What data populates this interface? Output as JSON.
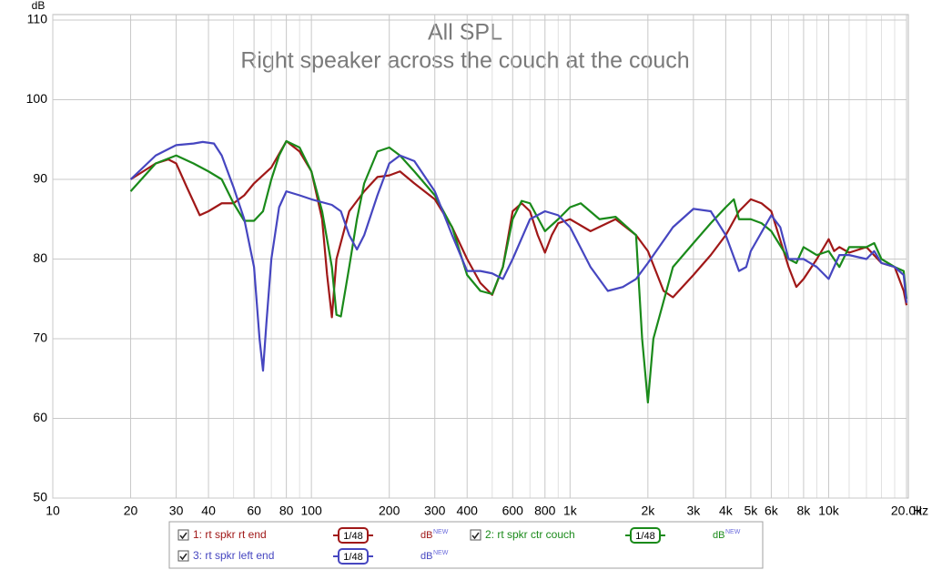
{
  "chart_data": {
    "type": "line",
    "title": "All SPL",
    "subtitle": "Right speaker across the couch at the couch",
    "x_label": "Hz",
    "y_label": "dB",
    "xscale": "log",
    "grid": true,
    "xlim": [
      10,
      20000
    ],
    "ylim": [
      50,
      110
    ],
    "yticks": [
      50,
      60,
      70,
      80,
      90,
      100,
      110
    ],
    "xticks": [
      10,
      20,
      30,
      40,
      60,
      80,
      100,
      200,
      300,
      400,
      600,
      800,
      {
        "value": 1000,
        "label": "1k"
      },
      {
        "value": 2000,
        "label": "2k"
      },
      {
        "value": 3000,
        "label": "3k"
      },
      {
        "value": 4000,
        "label": "4k"
      },
      {
        "value": 5000,
        "label": "5k"
      },
      {
        "value": 6000,
        "label": "6k"
      },
      {
        "value": 8000,
        "label": "8k"
      },
      {
        "value": 10000,
        "label": "10k"
      },
      {
        "value": 20000,
        "label": "20.0k"
      }
    ],
    "x_minor_ticks": [
      50,
      70,
      90,
      500,
      700,
      900,
      7000,
      9000,
      12000,
      14000,
      16000,
      18000
    ],
    "series": [
      {
        "name": "1: rt spkr rt end",
        "color": "#a01818",
        "smoothing": "1/48",
        "unit": "dB",
        "badge": "NEW",
        "x": [
          20,
          25,
          28,
          30,
          33,
          37,
          40,
          45,
          50,
          55,
          60,
          70,
          80,
          90,
          100,
          110,
          115,
          120,
          125,
          140,
          160,
          180,
          200,
          220,
          250,
          300,
          350,
          400,
          450,
          500,
          550,
          600,
          650,
          700,
          750,
          800,
          850,
          900,
          1000,
          1200,
          1500,
          1800,
          2000,
          2300,
          2500,
          3000,
          3500,
          4000,
          4500,
          5000,
          5500,
          6000,
          7000,
          7500,
          8000,
          9000,
          10000,
          10500,
          11000,
          12000,
          14000,
          16000,
          18000,
          19500,
          20000
        ],
        "values": [
          90,
          92,
          92.5,
          92,
          89,
          85.5,
          86,
          87,
          87,
          88,
          89.5,
          91.5,
          94.8,
          93.5,
          91,
          85,
          78,
          72.7,
          80,
          86,
          88.5,
          90.3,
          90.5,
          91,
          89.5,
          87.5,
          84,
          80,
          77,
          75.5,
          79,
          86,
          87,
          86,
          83,
          80.8,
          83,
          84.5,
          85,
          83.5,
          85,
          83,
          81,
          76,
          75.2,
          78,
          80.5,
          83,
          86,
          87.5,
          87,
          86,
          79,
          76.5,
          77.5,
          80,
          82.5,
          81,
          81.5,
          80.8,
          81.5,
          79.5,
          79,
          76,
          74.2
        ]
      },
      {
        "name": "2: rt spkr ctr couch",
        "color": "#1a8a1a",
        "smoothing": "1/48",
        "unit": "dB",
        "badge": "NEW",
        "x": [
          20,
          25,
          30,
          35,
          40,
          45,
          50,
          55,
          60,
          65,
          70,
          75,
          80,
          90,
          100,
          110,
          120,
          125,
          130,
          140,
          150,
          160,
          180,
          200,
          220,
          250,
          300,
          350,
          400,
          450,
          500,
          550,
          600,
          650,
          700,
          800,
          900,
          1000,
          1100,
          1300,
          1500,
          1800,
          1900,
          2000,
          2100,
          2500,
          3000,
          3500,
          4000,
          4300,
          4500,
          5000,
          5500,
          6000,
          7000,
          7500,
          8000,
          9000,
          10000,
          11000,
          12000,
          14000,
          15000,
          16000,
          18000,
          19500,
          20000
        ],
        "values": [
          88.5,
          92,
          93,
          92,
          91,
          90,
          87,
          84.8,
          84.8,
          86,
          90,
          93,
          94.8,
          94,
          91,
          86,
          79,
          73,
          72.8,
          79,
          85,
          89.5,
          93.5,
          94,
          93,
          91,
          88,
          84,
          78,
          76,
          75.6,
          79,
          85,
          87.3,
          87,
          83.5,
          85,
          86.5,
          87,
          85,
          85.3,
          83,
          70,
          62,
          70,
          79,
          82,
          84.5,
          86.5,
          87.5,
          85,
          85,
          84.5,
          83.5,
          80,
          79.5,
          81.5,
          80.5,
          81,
          79,
          81.5,
          81.5,
          82,
          80,
          79,
          78.5,
          75
        ]
      },
      {
        "name": "3: rt spkr left end",
        "color": "#4646c0",
        "smoothing": "1/48",
        "unit": "dB",
        "badge": "NEW",
        "x": [
          20,
          25,
          30,
          35,
          38,
          42,
          45,
          50,
          55,
          60,
          63,
          65,
          67,
          70,
          75,
          80,
          90,
          100,
          120,
          130,
          140,
          150,
          160,
          180,
          200,
          220,
          250,
          300,
          350,
          400,
          450,
          500,
          550,
          600,
          700,
          800,
          900,
          1000,
          1200,
          1400,
          1600,
          1800,
          2000,
          2500,
          3000,
          3500,
          4000,
          4500,
          4800,
          5000,
          6000,
          6500,
          7000,
          8000,
          9000,
          10000,
          11000,
          12000,
          14000,
          15000,
          16000,
          18000,
          19500,
          20000
        ],
        "values": [
          90,
          93,
          94.3,
          94.5,
          94.7,
          94.5,
          93,
          89,
          85,
          79,
          70,
          66,
          72,
          80,
          86.5,
          88.5,
          88,
          87.5,
          86.8,
          86,
          83,
          81.2,
          83,
          88,
          92,
          93,
          92.3,
          88.5,
          83,
          78.5,
          78.5,
          78.2,
          77.5,
          80,
          85,
          86,
          85.5,
          84,
          79,
          76,
          76.5,
          77.5,
          79.5,
          84,
          86.3,
          86,
          83,
          78.5,
          79,
          81,
          85.5,
          84,
          80,
          80,
          79,
          77.5,
          80.5,
          80.5,
          80,
          81,
          79.5,
          79,
          78,
          74.5
        ]
      }
    ]
  }
}
